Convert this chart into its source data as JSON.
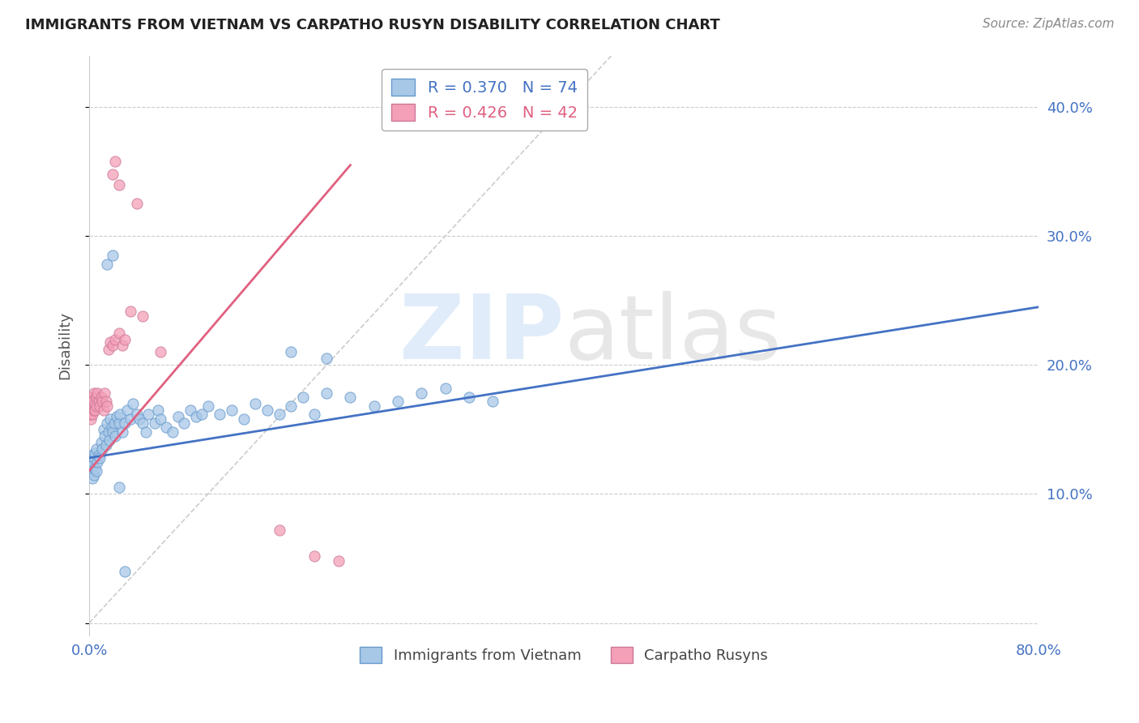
{
  "title": "IMMIGRANTS FROM VIETNAM VS CARPATHO RUSYN DISABILITY CORRELATION CHART",
  "source": "Source: ZipAtlas.com",
  "ylabel": "Disability",
  "xlim": [
    0.0,
    0.8
  ],
  "ylim": [
    -0.01,
    0.44
  ],
  "yticks": [
    0.0,
    0.1,
    0.2,
    0.3,
    0.4
  ],
  "ytick_labels": [
    "",
    "10.0%",
    "20.0%",
    "30.0%",
    "40.0%"
  ],
  "xticks": [
    0.0,
    0.2,
    0.4,
    0.6,
    0.8
  ],
  "xtick_labels": [
    "0.0%",
    "",
    "",
    "",
    "80.0%"
  ],
  "series1_color": "#a8c8e8",
  "series2_color": "#f4a0b8",
  "trendline1_color": "#4472c4",
  "trendline2_color": "#e06080",
  "diagonal_color": "#cccccc",
  "blue_color": "#4472c4",
  "pink_color": "#e06080",
  "legend1_label": "R = 0.370   N = 74",
  "legend2_label": "R = 0.426   N = 42",
  "bottom_label1": "Immigrants from Vietnam",
  "bottom_label2": "Carpatho Rusyns",
  "vietnam_x": [
    0.001,
    0.002,
    0.002,
    0.003,
    0.003,
    0.004,
    0.004,
    0.005,
    0.005,
    0.006,
    0.006,
    0.007,
    0.008,
    0.009,
    0.01,
    0.011,
    0.012,
    0.013,
    0.014,
    0.015,
    0.016,
    0.017,
    0.018,
    0.019,
    0.02,
    0.021,
    0.022,
    0.023,
    0.025,
    0.026,
    0.028,
    0.03,
    0.032,
    0.035,
    0.037,
    0.04,
    0.042,
    0.045,
    0.048,
    0.05,
    0.055,
    0.058,
    0.06,
    0.065,
    0.07,
    0.075,
    0.08,
    0.085,
    0.09,
    0.095,
    0.1,
    0.11,
    0.12,
    0.13,
    0.14,
    0.15,
    0.16,
    0.17,
    0.18,
    0.19,
    0.2,
    0.22,
    0.24,
    0.26,
    0.28,
    0.3,
    0.32,
    0.34,
    0.17,
    0.2,
    0.015,
    0.02,
    0.025,
    0.03
  ],
  "vietnam_y": [
    0.125,
    0.118,
    0.13,
    0.112,
    0.122,
    0.115,
    0.128,
    0.12,
    0.132,
    0.118,
    0.135,
    0.125,
    0.13,
    0.128,
    0.14,
    0.135,
    0.15,
    0.145,
    0.138,
    0.155,
    0.148,
    0.142,
    0.158,
    0.152,
    0.148,
    0.155,
    0.145,
    0.16,
    0.155,
    0.162,
    0.148,
    0.155,
    0.165,
    0.158,
    0.17,
    0.162,
    0.158,
    0.155,
    0.148,
    0.162,
    0.155,
    0.165,
    0.158,
    0.152,
    0.148,
    0.16,
    0.155,
    0.165,
    0.16,
    0.162,
    0.168,
    0.162,
    0.165,
    0.158,
    0.17,
    0.165,
    0.162,
    0.168,
    0.175,
    0.162,
    0.178,
    0.175,
    0.168,
    0.172,
    0.178,
    0.182,
    0.175,
    0.172,
    0.21,
    0.205,
    0.278,
    0.285,
    0.105,
    0.04
  ],
  "rusyn_x": [
    0.0005,
    0.001,
    0.001,
    0.0015,
    0.002,
    0.002,
    0.0025,
    0.003,
    0.003,
    0.0035,
    0.004,
    0.004,
    0.005,
    0.005,
    0.006,
    0.006,
    0.007,
    0.008,
    0.009,
    0.01,
    0.011,
    0.012,
    0.013,
    0.014,
    0.015,
    0.016,
    0.018,
    0.02,
    0.022,
    0.025,
    0.028,
    0.03,
    0.035,
    0.04,
    0.045,
    0.02,
    0.022,
    0.025,
    0.16,
    0.19,
    0.21,
    0.06
  ],
  "rusyn_y": [
    0.165,
    0.158,
    0.172,
    0.162,
    0.168,
    0.175,
    0.162,
    0.175,
    0.168,
    0.172,
    0.165,
    0.178,
    0.17,
    0.165,
    0.175,
    0.168,
    0.178,
    0.172,
    0.168,
    0.175,
    0.172,
    0.165,
    0.178,
    0.172,
    0.168,
    0.212,
    0.218,
    0.215,
    0.22,
    0.225,
    0.215,
    0.22,
    0.242,
    0.325,
    0.238,
    0.348,
    0.358,
    0.34,
    0.072,
    0.052,
    0.048,
    0.21
  ],
  "trendline1_x": [
    0.0,
    0.8
  ],
  "trendline1_y": [
    0.128,
    0.245
  ],
  "trendline2_x": [
    0.0,
    0.22
  ],
  "trendline2_y": [
    0.118,
    0.355
  ]
}
